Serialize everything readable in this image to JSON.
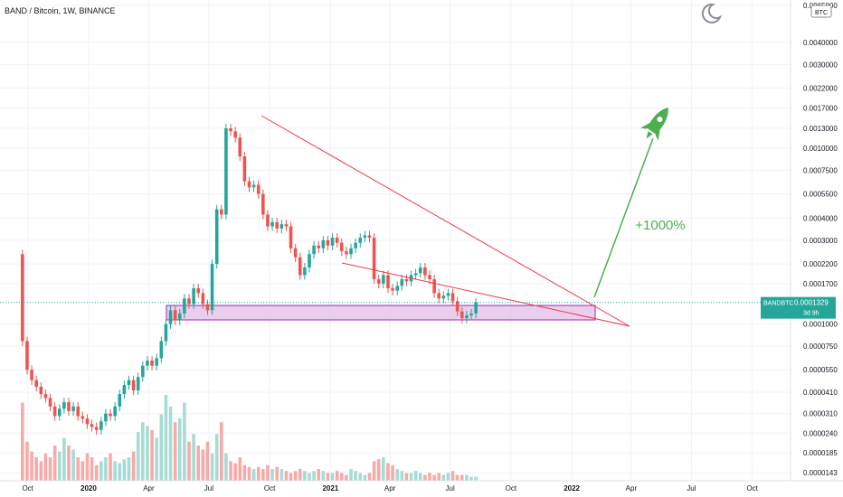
{
  "header": {
    "title": "BAND / Bitcoin, 1W, BINANCE",
    "currency_badge": "BTC",
    "theme_icon": "moon-icon"
  },
  "price_marker": {
    "symbol": "BANDBTC",
    "value": "0.0001329",
    "countdown": "3d 9h",
    "value_num": 0.0001329
  },
  "annotations": {
    "target_label": "+1000%",
    "rocket_icon": "rocket-icon"
  },
  "colors": {
    "up": "#26a69a",
    "down": "#ef5350",
    "vol_up": "#a7dbd5",
    "vol_down": "#f7aaa8",
    "trendline": "#f23645",
    "zone_fill": "#e1bee7",
    "zone_stroke": "#9c27b0",
    "projection": "#4caf50"
  },
  "chart_data": {
    "type": "candlestick",
    "title": "BAND / Bitcoin, 1W, BINANCE",
    "y_scale": "log",
    "y_tick_labels": [
      "0.0065000",
      "0.0040000",
      "0.0030000",
      "0.0022000",
      "0.0017000",
      "0.0013000",
      "0.0010000",
      "0.0007500",
      "0.0005500",
      "0.0004000",
      "0.0003000",
      "0.0002200",
      "0.0001700",
      "0.0001000",
      "0.0000750",
      "0.0000550",
      "0.0000410",
      "0.0000310",
      "0.0000240",
      "0.0000185",
      "0.0000143"
    ],
    "y_ticks": [
      0.0065,
      0.004,
      0.003,
      0.0022,
      0.0017,
      0.0013,
      0.001,
      0.00075,
      0.00055,
      0.0004,
      0.0003,
      0.00022,
      0.00017,
      0.0001,
      7.5e-05,
      5.5e-05,
      4.1e-05,
      3.1e-05,
      2.4e-05,
      1.85e-05,
      1.43e-05
    ],
    "ylim": [
      1.43e-05,
      0.0065
    ],
    "x_tick_labels": [
      "Oct",
      "2020",
      "Apr",
      "Jul",
      "Oct",
      "2021",
      "Apr",
      "Jul",
      "Oct",
      "2022",
      "Apr",
      "Jul",
      "Oct"
    ],
    "x_ticks": [
      "2019-10-01",
      "2020-01-01",
      "2020-04-01",
      "2020-07-01",
      "2020-10-01",
      "2021-01-01",
      "2021-04-01",
      "2021-07-01",
      "2021-10-01",
      "2022-01-01",
      "2022-04-01",
      "2022-07-01",
      "2022-10-01"
    ],
    "x_range": [
      "2019-08-20",
      "2022-11-28"
    ],
    "first_week": "2019-09-23",
    "close": [
      8e-05,
      5.5e-05,
      4.8e-05,
      4.4e-05,
      4e-05,
      3.8e-05,
      3.4e-05,
      3e-05,
      3.3e-05,
      3.6e-05,
      3.2e-05,
      3.4e-05,
      3e-05,
      2.9e-05,
      2.7e-05,
      2.6e-05,
      2.5e-05,
      2.8e-05,
      3.1e-05,
      3e-05,
      3.4e-05,
      4e-05,
      4.5e-05,
      4.8e-05,
      4.2e-05,
      5e-05,
      5.8e-05,
      6.2e-05,
      5.8e-05,
      6.4e-05,
      8e-05,
      0.0001,
      0.00012,
      0.000105,
      0.000115,
      0.00014,
      0.00013,
      0.00016,
      0.00015,
      0.00013,
      0.00012,
      0.00022,
      0.00045,
      0.00042,
      0.0013,
      0.00125,
      0.00115,
      0.0009,
      0.00065,
      0.0006,
      0.00062,
      0.00055,
      0.00042,
      0.00036,
      0.00038,
      0.00035,
      0.00037,
      0.00036,
      0.00027,
      0.00024,
      0.00019,
      0.00021,
      0.00025,
      0.00028,
      0.00027,
      0.0003,
      0.00028,
      0.00031,
      0.00029,
      0.00026,
      0.00025,
      0.00027,
      0.00029,
      0.00031,
      0.00032,
      0.00031,
      0.00018,
      0.00017,
      0.00019,
      0.00016,
      0.000155,
      0.000165,
      0.00018,
      0.000175,
      0.00019,
      0.000195,
      0.00021,
      0.00019,
      0.00018,
      0.00015,
      0.00014,
      0.000145,
      0.00015,
      0.000135,
      0.000118,
      0.000108,
      0.000112,
      0.000115,
      0.0001329
    ],
    "volume": [
      40,
      20,
      15,
      12,
      10,
      14,
      12,
      18,
      15,
      22,
      18,
      16,
      12,
      10,
      14,
      12,
      8,
      10,
      12,
      14,
      10,
      9,
      11,
      12,
      15,
      25,
      30,
      28,
      26,
      22,
      34,
      44,
      38,
      30,
      32,
      40,
      20,
      24,
      18,
      16,
      20,
      14,
      24,
      30,
      14,
      10,
      9,
      12,
      8,
      7,
      6,
      7,
      6,
      8,
      6,
      7,
      6,
      5,
      4,
      5,
      6,
      5,
      4,
      5,
      6,
      5,
      4,
      4,
      5,
      4,
      3,
      6,
      5,
      4,
      3,
      4,
      10,
      11,
      12,
      9,
      8,
      6,
      5,
      4,
      4,
      5,
      4,
      3,
      4,
      3,
      4,
      3,
      4,
      5,
      3,
      3,
      3,
      2,
      2
    ],
    "series": [
      {
        "name": "BANDBTC"
      }
    ],
    "grid": true
  }
}
